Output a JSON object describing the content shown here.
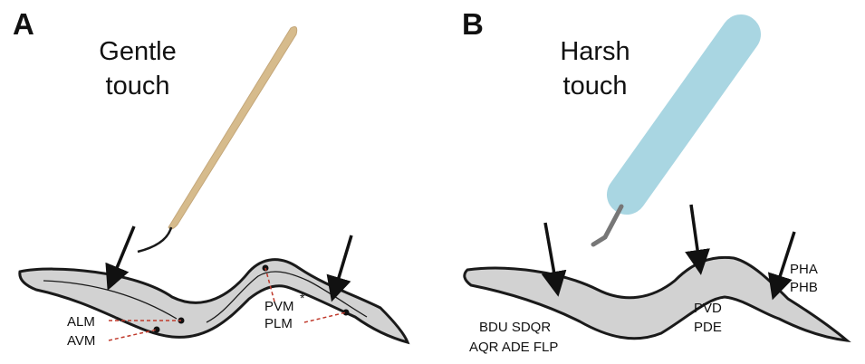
{
  "panel_a": {
    "letter": "A",
    "title_line1": "Gentle",
    "title_line2": "touch",
    "labels": {
      "alm": "ALM",
      "avm": "AVM",
      "pvm": "PVM",
      "pvm_mark": "*",
      "plm": "PLM"
    }
  },
  "panel_b": {
    "letter": "B",
    "title_line1": "Harsh",
    "title_line2": "touch",
    "labels": {
      "head_line1": "BDU SDQR",
      "head_line2": "AQR ADE FLP",
      "mid_line1": "PVD",
      "mid_line2": "PDE",
      "tail_line1": "PHA",
      "tail_line2": "PHB"
    }
  },
  "colors": {
    "worm_fill": "#d2d2d2",
    "outline": "#1a1a1a",
    "eyelash_probe": "#d6bb8c",
    "harsh_probe": "#a9d6e2",
    "wire": "#777777",
    "dash": "#c0392b"
  }
}
